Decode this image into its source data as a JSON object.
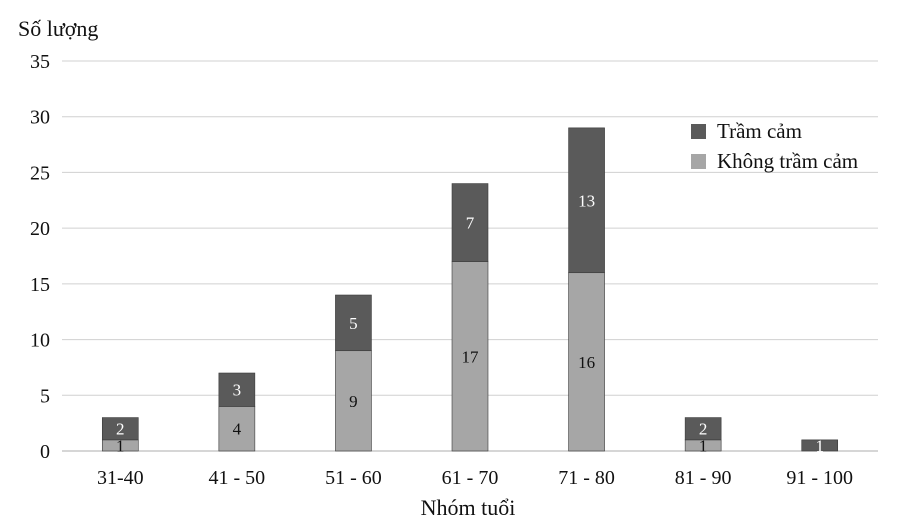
{
  "chart_data": {
    "type": "bar",
    "stacked": true,
    "categories": [
      "31-40",
      "41 - 50",
      "51 - 60",
      "61 - 70",
      "71 - 80",
      "81 - 90",
      "91 - 100"
    ],
    "series": [
      {
        "name": "Không trầm cảm",
        "values": [
          1,
          4,
          9,
          17,
          16,
          1,
          0
        ],
        "color": "#a6a6a6"
      },
      {
        "name": "Trầm cảm",
        "values": [
          2,
          3,
          5,
          7,
          13,
          2,
          1
        ],
        "color": "#5a5a5a"
      }
    ],
    "xlabel": "Nhóm tuổi",
    "ylabel": "Số lượng",
    "ylim": [
      0,
      35
    ],
    "yticks": [
      0,
      5,
      10,
      15,
      20,
      25,
      30,
      35
    ],
    "grid": true,
    "legend_position": "top-right",
    "legend_order": [
      "Trầm cảm",
      "Không trầm cảm"
    ]
  }
}
